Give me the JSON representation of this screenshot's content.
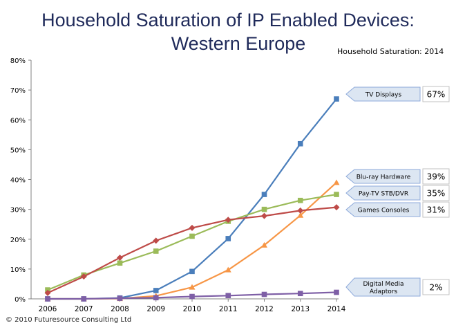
{
  "chart_data": {
    "type": "line",
    "title_line1": "Household Saturation of IP Enabled Devices:",
    "title_line2": "Western Europe",
    "subtitle": "Household Saturation: 2014",
    "footer": "© 2010 Futuresource Consulting Ltd",
    "x": [
      "2006",
      "2007",
      "2008",
      "2009",
      "2010",
      "2011",
      "2012",
      "2013",
      "2014"
    ],
    "ylim": [
      0,
      80
    ],
    "y_ticks": [
      "0%",
      "10%",
      "20%",
      "30%",
      "40%",
      "50%",
      "60%",
      "70%",
      "80%"
    ],
    "series": [
      {
        "name": "TV Displays",
        "color": "#4a7ebb",
        "marker": "square",
        "values": [
          0,
          0,
          0.3,
          2.8,
          9.2,
          20.2,
          35,
          52,
          67
        ],
        "end_label": "67%"
      },
      {
        "name": "Blu-ray Hardware",
        "color": "#f79646",
        "marker": "triangle",
        "values": [
          0,
          0,
          0.1,
          1,
          3.9,
          9.7,
          18,
          28,
          39
        ],
        "end_label": "39%"
      },
      {
        "name": "Pay-TV STB/DVR",
        "color": "#9bbb59",
        "marker": "square",
        "values": [
          3,
          8,
          12,
          16,
          21,
          26,
          30,
          33,
          35
        ],
        "end_label": "35%"
      },
      {
        "name": "Games Consoles",
        "color": "#be4b48",
        "marker": "diamond",
        "values": [
          2,
          7.5,
          13.8,
          19.5,
          23.8,
          26.5,
          27.8,
          29.6,
          30.7
        ],
        "end_label": "31%"
      },
      {
        "name_lines": [
          "Digital Media",
          "Adaptors"
        ],
        "color": "#7e5fa6",
        "marker": "square",
        "values": [
          0,
          0,
          0.2,
          0.4,
          0.8,
          1.1,
          1.5,
          1.8,
          2.2
        ],
        "end_label": "2%"
      }
    ],
    "grid": false,
    "legend": "right, callout labels at line ends"
  }
}
